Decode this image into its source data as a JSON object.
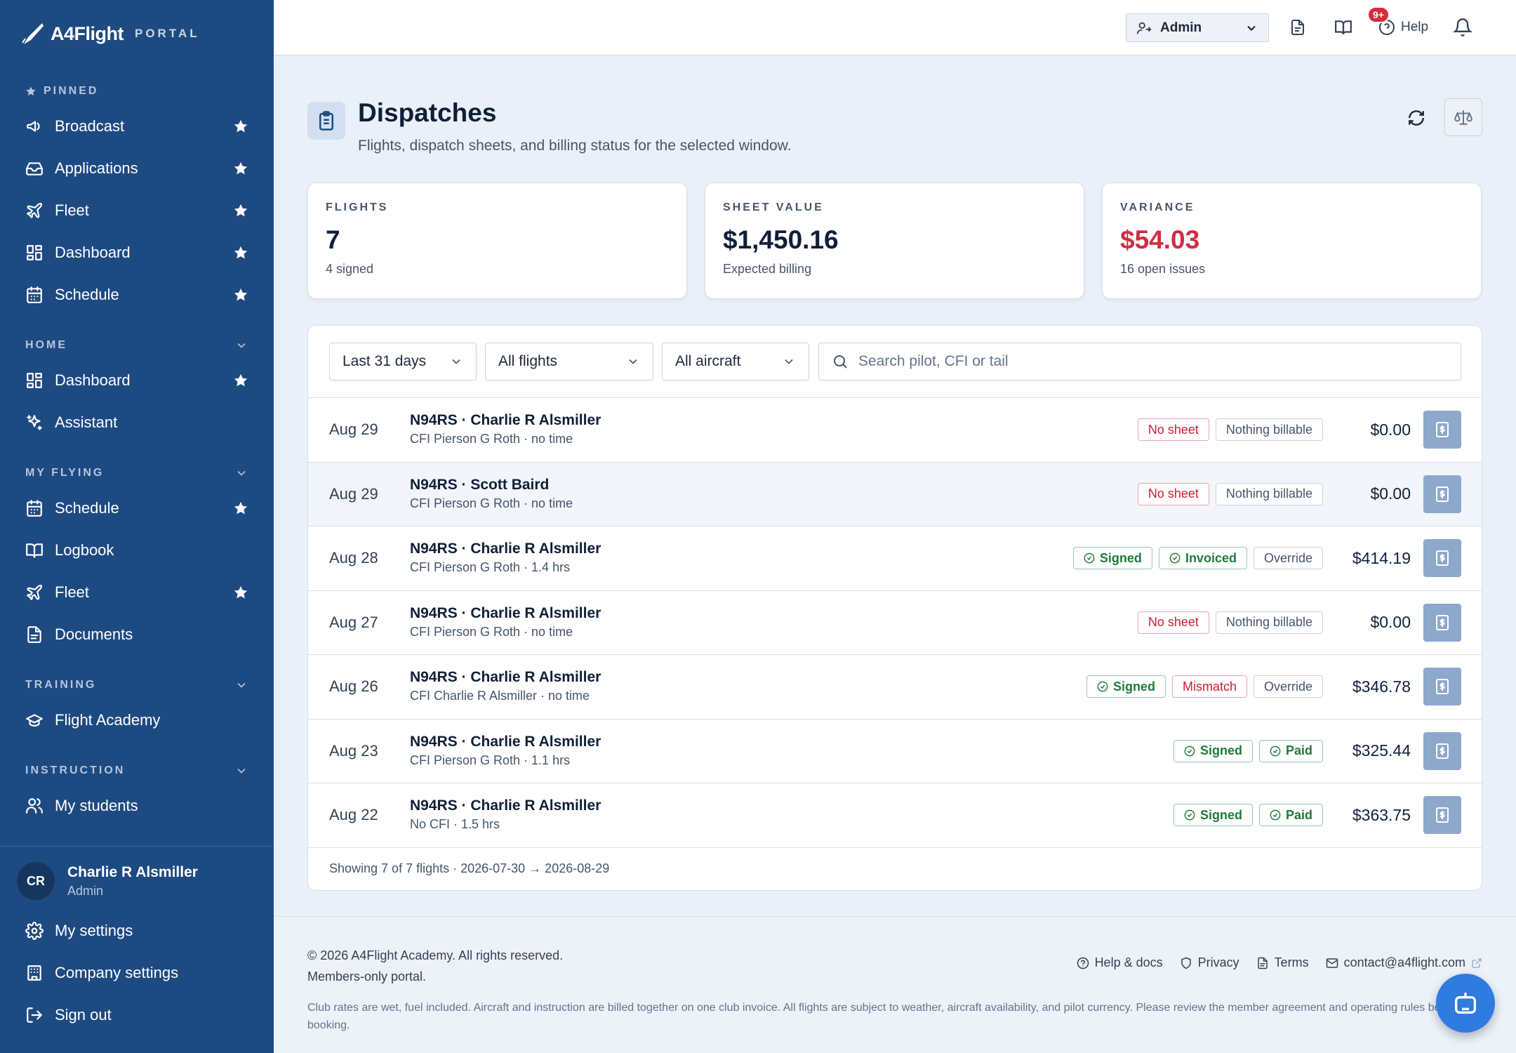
{
  "brand": {
    "name": "A4Flight",
    "portal": "PORTAL"
  },
  "sidebar": {
    "pinned_label": "PINNED",
    "pinned": [
      {
        "label": "Broadcast",
        "icon": "megaphone-icon"
      },
      {
        "label": "Applications",
        "icon": "inbox-icon"
      },
      {
        "label": "Fleet",
        "icon": "plane-icon"
      },
      {
        "label": "Dashboard",
        "icon": "grid-icon"
      },
      {
        "label": "Schedule",
        "icon": "calendar-icon"
      }
    ],
    "sections": [
      {
        "label": "HOME",
        "items": [
          {
            "label": "Dashboard",
            "icon": "grid-icon",
            "starred": true
          },
          {
            "label": "Assistant",
            "icon": "sparkles-icon",
            "starred": false
          }
        ]
      },
      {
        "label": "MY FLYING",
        "items": [
          {
            "label": "Schedule",
            "icon": "calendar-icon",
            "starred": true
          },
          {
            "label": "Logbook",
            "icon": "book-icon",
            "starred": false
          },
          {
            "label": "Fleet",
            "icon": "plane-icon",
            "starred": true
          },
          {
            "label": "Documents",
            "icon": "document-icon",
            "starred": false
          }
        ]
      },
      {
        "label": "TRAINING",
        "items": [
          {
            "label": "Flight Academy",
            "icon": "graduation-cap-icon",
            "starred": false
          }
        ]
      },
      {
        "label": "INSTRUCTION",
        "items": [
          {
            "label": "My students",
            "icon": "users-icon",
            "starred": false
          }
        ]
      }
    ],
    "user": {
      "initials": "CR",
      "name": "Charlie R Alsmiller",
      "role": "Admin"
    },
    "bottom": [
      {
        "label": "My settings",
        "icon": "gear-icon"
      },
      {
        "label": "Company settings",
        "icon": "building-icon"
      },
      {
        "label": "Sign out",
        "icon": "sign-out-icon"
      }
    ]
  },
  "topbar": {
    "role": "Admin",
    "help": "Help",
    "notifications": "9+"
  },
  "page": {
    "title": "Dispatches",
    "subtitle": "Flights, dispatch sheets, and billing status for the selected window."
  },
  "stats": [
    {
      "key": "FLIGHTS",
      "value": "7",
      "sub": "4 signed",
      "color": "#0f1f38"
    },
    {
      "key": "SHEET VALUE",
      "value": "$1,450.16",
      "sub": "Expected billing",
      "color": "#0f1f38"
    },
    {
      "key": "VARIANCE",
      "value": "$54.03",
      "sub": "16 open issues",
      "color": "#d12c43"
    }
  ],
  "filters": {
    "range": "Last 31 days",
    "flights": "All flights",
    "aircraft": "All aircraft",
    "search_placeholder": "Search pilot, CFI or tail"
  },
  "rows": [
    {
      "date": "Aug 29",
      "title": "N94RS · Charlie R Alsmiller",
      "meta": "CFI Pierson G Roth · no time",
      "tags": [
        {
          "label": "No sheet",
          "kind": "red"
        },
        {
          "label": "Nothing billable",
          "kind": "gray"
        }
      ],
      "amount": "$0.00"
    },
    {
      "date": "Aug 29",
      "title": "N94RS · Scott Baird",
      "meta": "CFI Pierson G Roth · no time",
      "tags": [
        {
          "label": "No sheet",
          "kind": "red"
        },
        {
          "label": "Nothing billable",
          "kind": "gray"
        }
      ],
      "amount": "$0.00"
    },
    {
      "date": "Aug 28",
      "title": "N94RS · Charlie R Alsmiller",
      "meta": "CFI Pierson G Roth · 1.4 hrs",
      "tags": [
        {
          "label": "Signed",
          "kind": "green"
        },
        {
          "label": "Invoiced",
          "kind": "green"
        },
        {
          "label": "Override",
          "kind": "gray"
        }
      ],
      "amount": "$414.19"
    },
    {
      "date": "Aug 27",
      "title": "N94RS · Charlie R Alsmiller",
      "meta": "CFI Pierson G Roth · no time",
      "tags": [
        {
          "label": "No sheet",
          "kind": "red"
        },
        {
          "label": "Nothing billable",
          "kind": "gray"
        }
      ],
      "amount": "$0.00"
    },
    {
      "date": "Aug 26",
      "title": "N94RS · Charlie R Alsmiller",
      "meta": "CFI Charlie R Alsmiller · no time",
      "tags": [
        {
          "label": "Signed",
          "kind": "green"
        },
        {
          "label": "Mismatch",
          "kind": "red"
        },
        {
          "label": "Override",
          "kind": "gray"
        }
      ],
      "amount": "$346.78"
    },
    {
      "date": "Aug 23",
      "title": "N94RS · Charlie R Alsmiller",
      "meta": "CFI Pierson G Roth · 1.1 hrs",
      "tags": [
        {
          "label": "Signed",
          "kind": "green"
        },
        {
          "label": "Paid",
          "kind": "green"
        }
      ],
      "amount": "$325.44"
    },
    {
      "date": "Aug 22",
      "title": "N94RS · Charlie R Alsmiller",
      "meta": "No CFI · 1.5 hrs",
      "tags": [
        {
          "label": "Signed",
          "kind": "green"
        },
        {
          "label": "Paid",
          "kind": "green"
        }
      ],
      "amount": "$363.75"
    }
  ],
  "table_footer": "Showing 7 of 7 flights · 2026-07-30 → 2026-08-29",
  "footer": {
    "copyright": "© 2026 A4Flight Academy. All rights reserved.",
    "members": "Members-only portal.",
    "links": [
      {
        "label": "Help & docs",
        "icon": "help-circle-icon"
      },
      {
        "label": "Privacy",
        "icon": "shield-icon"
      },
      {
        "label": "Terms",
        "icon": "document-icon"
      },
      {
        "label": "contact@a4flight.com",
        "icon": "mail-icon"
      }
    ],
    "note": "Club rates are wet, fuel included. Aircraft and instruction are billed together on one club invoice. All flights are subject to weather, aircraft availability, and pilot currency. Please review the member agreement and operating rules before booking."
  }
}
